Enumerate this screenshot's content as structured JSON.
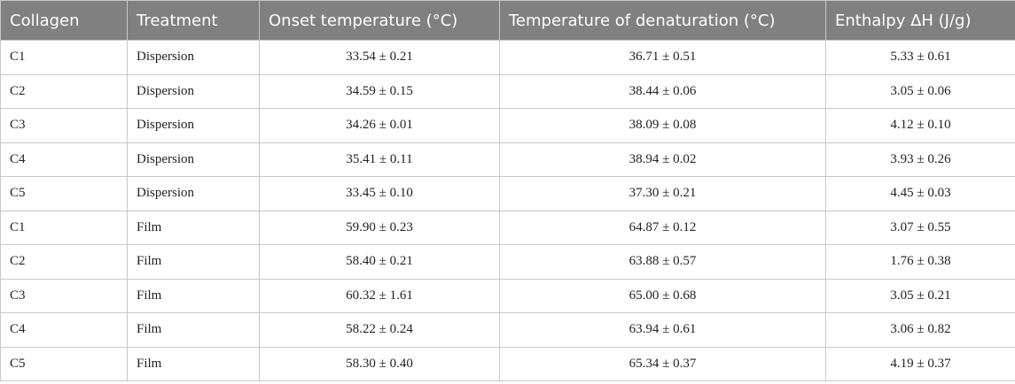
{
  "table": {
    "header": [
      "Collagen",
      "Treatment",
      "Onset temperature (°C)",
      "Temperature of denaturation (°C)",
      "Enthalpy ΔH (J/g)"
    ],
    "rows": [
      [
        "C1",
        "Dispersion",
        "33.54 ± 0.21",
        "36.71 ± 0.51",
        "5.33 ± 0.61"
      ],
      [
        "C2",
        "Dispersion",
        "34.59 ± 0.15",
        "38.44 ± 0.06",
        "3.05 ± 0.06"
      ],
      [
        "C3",
        "Dispersion",
        "34.26 ± 0.01",
        "38.09 ± 0.08",
        "4.12 ± 0.10"
      ],
      [
        "C4",
        "Dispersion",
        "35.41 ± 0.11",
        "38.94 ± 0.02",
        "3.93 ± 0.26"
      ],
      [
        "C5",
        "Dispersion",
        "33.45 ± 0.10",
        "37.30 ± 0.21",
        "4.45 ± 0.03"
      ],
      [
        "C1",
        "Film",
        "59.90 ± 0.23",
        "64.87 ± 0.12",
        "3.07 ± 0.55"
      ],
      [
        "C2",
        "Film",
        "58.40 ± 0.21",
        "63.88 ± 0.57",
        "1.76 ± 0.38"
      ],
      [
        "C3",
        "Film",
        "60.32 ± 1.61",
        "65.00 ± 0.68",
        "3.05 ± 0.21"
      ],
      [
        "C4",
        "Film",
        "58.22 ± 0.24",
        "63.94 ± 0.61",
        "3.06 ± 0.82"
      ],
      [
        "C5",
        "Film",
        "58.30 ± 0.40",
        "65.34 ± 0.37",
        "4.19 ± 0.37"
      ]
    ]
  }
}
